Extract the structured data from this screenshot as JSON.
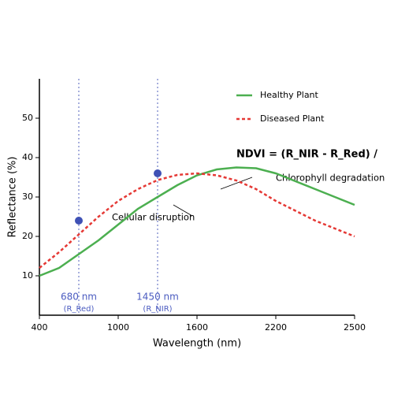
{
  "chart_data": {
    "type": "line",
    "x_label": "Wavelength (nm)",
    "y_label": "Reflectance (%)",
    "xlim": [
      0,
      4
    ],
    "xticks": [
      {
        "value": 0,
        "label": "400"
      },
      {
        "value": 1,
        "label": "1000"
      },
      {
        "value": 2,
        "label": "1600"
      },
      {
        "value": 3,
        "label": "2200"
      },
      {
        "value": 4,
        "label": "2500"
      }
    ],
    "ylim": [
      0,
      60
    ],
    "yticks": [
      10,
      20,
      30,
      40,
      50
    ],
    "x": [
      0,
      0.25,
      0.5,
      0.75,
      1,
      1.25,
      1.5,
      1.75,
      2,
      2.25,
      2.5,
      2.75,
      3,
      3.25,
      3.5,
      3.75,
      4
    ],
    "series": [
      {
        "name": "Healthy Plant",
        "color": "#4caf50",
        "dashed": false,
        "values": [
          10,
          12,
          15.5,
          19,
          23,
          27,
          30,
          33,
          35.5,
          37,
          37.5,
          37.3,
          36,
          34,
          32,
          30,
          28
        ]
      },
      {
        "name": "Diseased Plant",
        "color": "#e53935",
        "dashed": true,
        "values": [
          12,
          16,
          20.5,
          25,
          29,
          32,
          34.3,
          35.6,
          36,
          35.5,
          34.2,
          32,
          29,
          26.5,
          24,
          22,
          20
        ]
      }
    ],
    "points": {
      "color": "#3f51b5",
      "x": [
        0.5,
        1.5
      ],
      "y": [
        24,
        36
      ]
    },
    "markers": [
      {
        "x": 0.5,
        "label": "680 nm",
        "sublabel": "(R_Red)"
      },
      {
        "x": 1.5,
        "label": "1450 nm",
        "sublabel": "(R_NIR)"
      }
    ],
    "marker_color": "#7986cb",
    "annotations": [
      "Cellular disruption",
      "Chlorophyll degradation"
    ],
    "formula": "NDVI = (R_NIR - R_Red) /"
  }
}
